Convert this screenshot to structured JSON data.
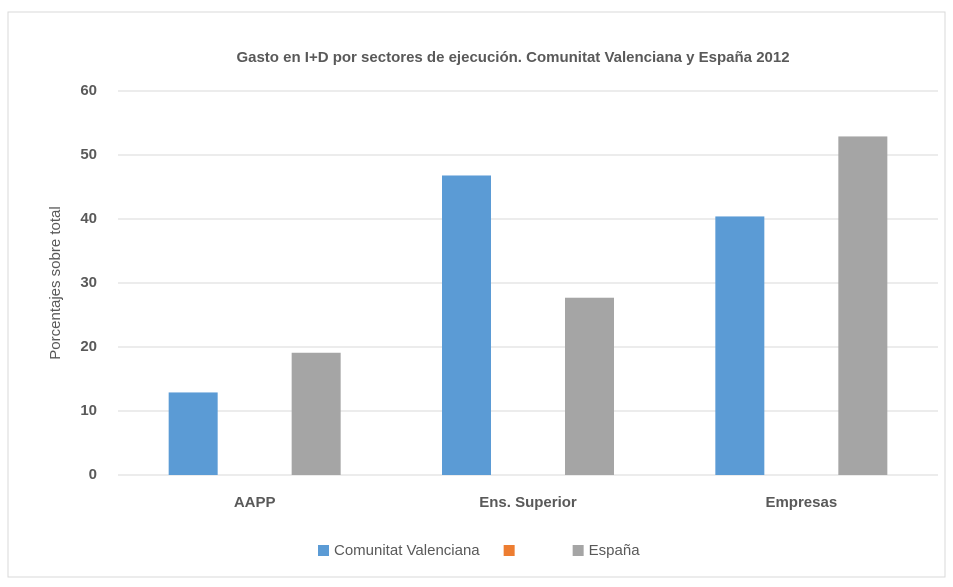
{
  "chart_data": {
    "type": "bar",
    "title": "Gasto en I+D por sectores de ejecución. Comunitat Valenciana y España 2012",
    "ylabel": "Porcentajes sobre total",
    "categories": [
      "AAPP",
      "Ens. Superior",
      "Empresas"
    ],
    "series": [
      {
        "name": "Comunitat Valenciana",
        "color": "#5b9bd5",
        "values": [
          12.9,
          46.8,
          40.4
        ]
      },
      {
        "color": "#ed7d31",
        "values": [
          null,
          null,
          null
        ]
      },
      {
        "name": "España",
        "color": "#a5a5a5",
        "values": [
          19.1,
          27.7,
          52.9
        ]
      }
    ],
    "ylim": [
      0,
      60
    ],
    "yticks": [
      0,
      10,
      20,
      30,
      40,
      50,
      60
    ],
    "grid": true,
    "legend": "bottom"
  }
}
